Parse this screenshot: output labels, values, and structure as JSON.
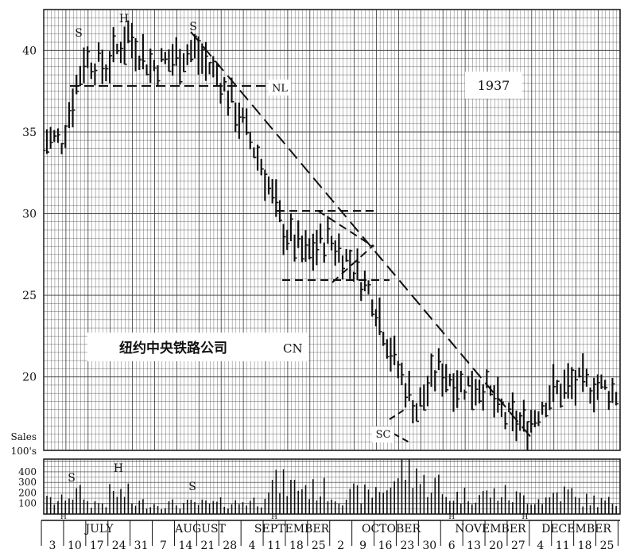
{
  "chart_data": {
    "type": "bar",
    "subtype": "high-low-close bar chart with volume panel",
    "year_label": "1937",
    "company_label": "纽约中央铁路公司",
    "pattern_label": "CN",
    "grid": true,
    "price_axis": {
      "ylim": [
        15.5,
        42.5
      ],
      "ticks": [
        "40",
        "35",
        "30",
        "25",
        "20"
      ],
      "tick_values": [
        40,
        35,
        30,
        25,
        20
      ]
    },
    "volume_axis": {
      "title_line1": "Sales",
      "title_line2": "100's",
      "ylim": [
        0,
        520
      ],
      "ticks": [
        "400",
        "300",
        "200",
        "100"
      ],
      "tick_values": [
        400,
        300,
        200,
        100
      ]
    },
    "months": [
      "JULY",
      "AUGUST",
      "SEPTEMBER",
      "OCTOBER",
      "NOVEMBER",
      "DECEMBER"
    ],
    "week_dates": [
      "3",
      "10",
      "17",
      "24",
      "31",
      "7",
      "14",
      "21",
      "28",
      "4",
      "11",
      "18",
      "25",
      "2",
      "9",
      "16",
      "23",
      "30",
      "6",
      "13",
      "20",
      "27",
      "4",
      "11",
      "18",
      "25"
    ],
    "annotations": {
      "left_shoulder": "S",
      "head": "H",
      "right_shoulder": "S",
      "neckline": "NL",
      "selling_climax": "SC",
      "volume_left_shoulder": "S",
      "volume_head": "H",
      "volume_right_shoulder": "S"
    },
    "close_series_weekly": [
      {
        "week": "Jul 3",
        "close": 34.5
      },
      {
        "week": "Jul 10",
        "close": 39.5
      },
      {
        "week": "Jul 17",
        "close": 39.0
      },
      {
        "week": "Jul 24",
        "close": 41.0
      },
      {
        "week": "Jul 31",
        "close": 39.0
      },
      {
        "week": "Aug 7",
        "close": 39.5
      },
      {
        "week": "Aug 14",
        "close": 40.0
      },
      {
        "week": "Aug 21",
        "close": 38.5
      },
      {
        "week": "Aug 28",
        "close": 36.0
      },
      {
        "week": "Sep 4",
        "close": 33.0
      },
      {
        "week": "Sep 11",
        "close": 29.0
      },
      {
        "week": "Sep 18",
        "close": 27.5
      },
      {
        "week": "Sep 25",
        "close": 28.5
      },
      {
        "week": "Oct 2",
        "close": 27.0
      },
      {
        "week": "Oct 9",
        "close": 25.0
      },
      {
        "week": "Oct 16",
        "close": 21.0
      },
      {
        "week": "Oct 23",
        "close": 18.0
      },
      {
        "week": "Oct 30",
        "close": 20.5
      },
      {
        "week": "Nov 6",
        "close": 19.5
      },
      {
        "week": "Nov 13",
        "close": 19.5
      },
      {
        "week": "Nov 20",
        "close": 17.5
      },
      {
        "week": "Nov 27",
        "close": 17.0
      },
      {
        "week": "Dec 4",
        "close": 19.0
      },
      {
        "week": "Dec 11",
        "close": 19.5
      },
      {
        "week": "Dec 18",
        "close": 19.5
      },
      {
        "week": "Dec 25",
        "close": 19.0
      }
    ],
    "volume_weekly_typical": [
      {
        "week": "Jul 3",
        "volume": 130
      },
      {
        "week": "Jul 10",
        "volume": 200
      },
      {
        "week": "Jul 17",
        "volume": 110
      },
      {
        "week": "Jul 24",
        "volume": 200
      },
      {
        "week": "Jul 31",
        "volume": 110
      },
      {
        "week": "Aug 7",
        "volume": 100
      },
      {
        "week": "Aug 14",
        "volume": 100
      },
      {
        "week": "Aug 21",
        "volume": 100
      },
      {
        "week": "Aug 28",
        "volume": 110
      },
      {
        "week": "Sep 4",
        "volume": 130
      },
      {
        "week": "Sep 11",
        "volume": 300
      },
      {
        "week": "Sep 18",
        "volume": 280
      },
      {
        "week": "Sep 25",
        "volume": 240
      },
      {
        "week": "Oct 2",
        "volume": 180
      },
      {
        "week": "Oct 9",
        "volume": 200
      },
      {
        "week": "Oct 16",
        "volume": 260
      },
      {
        "week": "Oct 23",
        "volume": 480
      },
      {
        "week": "Oct 30",
        "volume": 300
      },
      {
        "week": "Nov 6",
        "volume": 180
      },
      {
        "week": "Nov 13",
        "volume": 190
      },
      {
        "week": "Nov 20",
        "volume": 200
      },
      {
        "week": "Nov 27",
        "volume": 170
      },
      {
        "week": "Dec 4",
        "volume": 150
      },
      {
        "week": "Dec 11",
        "volume": 210
      },
      {
        "week": "Dec 18",
        "volume": 140
      },
      {
        "week": "Dec 25",
        "volume": 120
      }
    ]
  }
}
